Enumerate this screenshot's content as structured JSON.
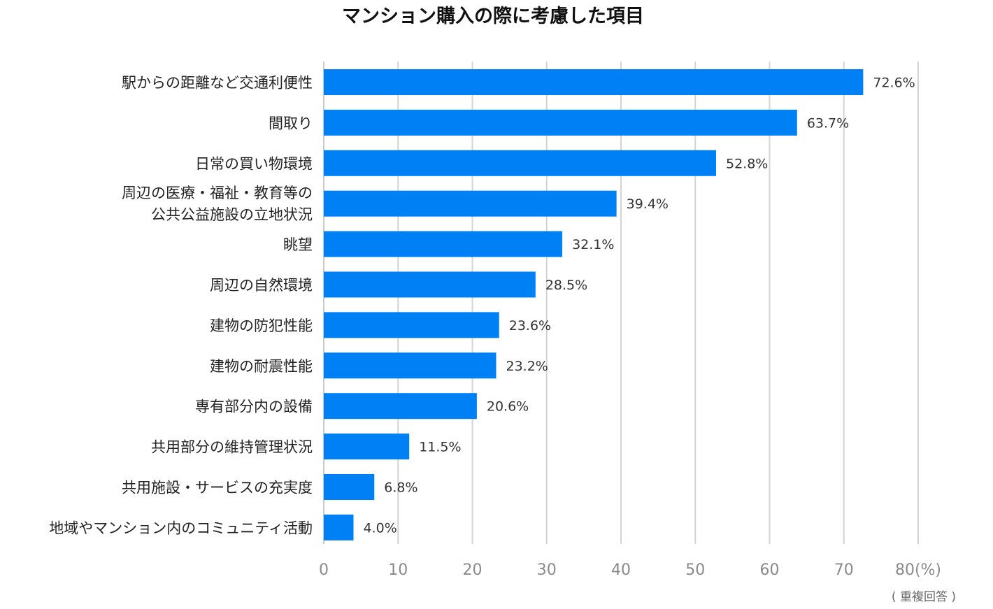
{
  "chart_data": {
    "type": "bar",
    "orientation": "horizontal",
    "title": "マンション購入の際に考慮した項目",
    "categories": [
      [
        "駅からの距離など交通利便性"
      ],
      [
        "間取り"
      ],
      [
        "日常の買い物環境"
      ],
      [
        "周辺の医療・福祉・教育等の",
        "公共公益施設の立地状況"
      ],
      [
        "眺望"
      ],
      [
        "周辺の自然環境"
      ],
      [
        "建物の防犯性能"
      ],
      [
        "建物の耐震性能"
      ],
      [
        "専有部分内の設備"
      ],
      [
        "共用部分の維持管理状況"
      ],
      [
        "共用施設・サービスの充実度"
      ],
      [
        "地域やマンション内のコミュニティ活動"
      ]
    ],
    "values": [
      72.6,
      63.7,
      52.8,
      39.4,
      32.1,
      28.5,
      23.6,
      23.2,
      20.6,
      11.5,
      6.8,
      4.0
    ],
    "value_labels": [
      "72.6%",
      "63.7%",
      "52.8%",
      "39.4%",
      "32.1%",
      "28.5%",
      "23.6%",
      "23.2%",
      "20.6%",
      "11.5%",
      "6.8%",
      "4.0%"
    ],
    "xlim": [
      0,
      80
    ],
    "x_ticks": [
      0,
      10,
      20,
      30,
      40,
      50,
      60,
      70,
      80
    ],
    "x_tick_labels": [
      "0",
      "10",
      "20",
      "30",
      "40",
      "50",
      "60",
      "70",
      "80(%)"
    ],
    "note": "( 重複回答 )",
    "grid": "vertical",
    "bar_color": "#0080f5"
  }
}
